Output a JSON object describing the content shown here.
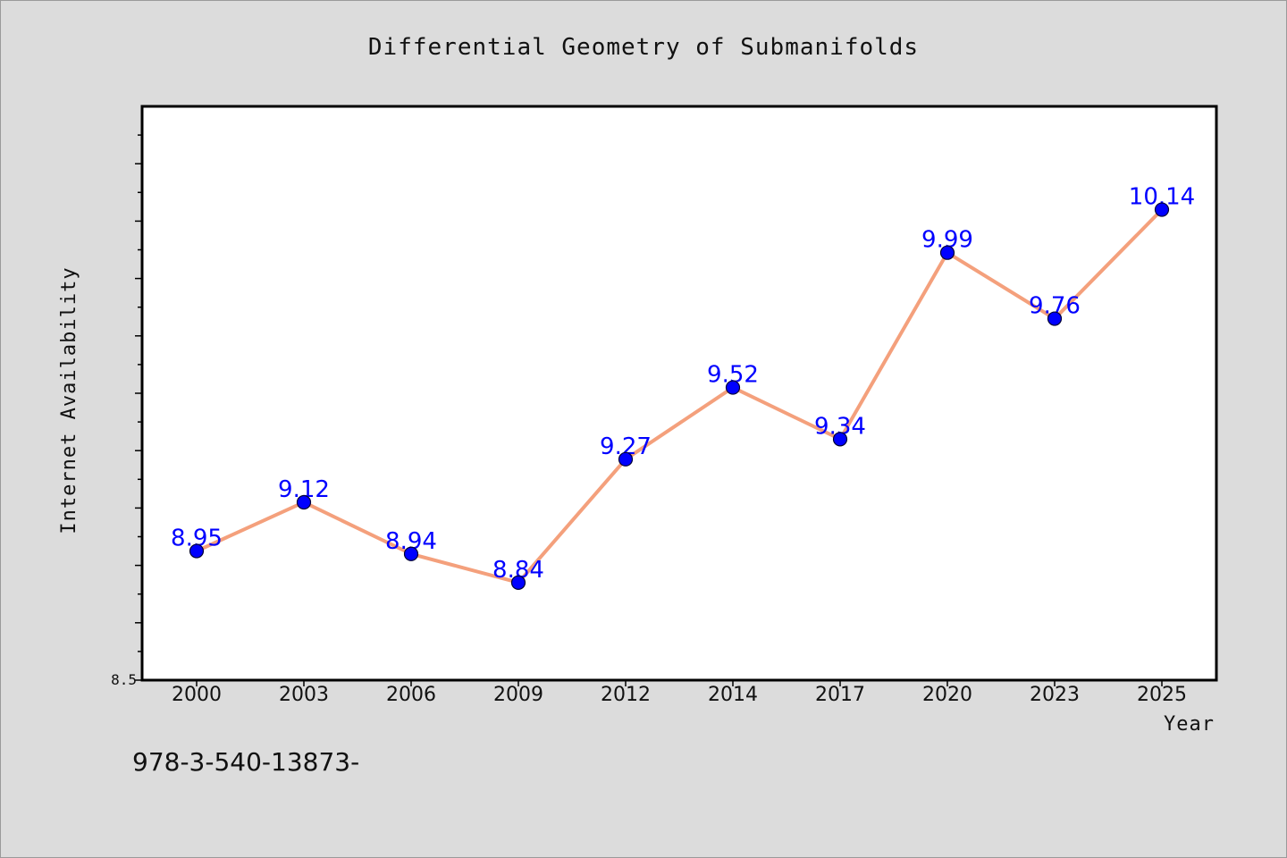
{
  "chart_data": {
    "type": "line",
    "title": "Differential Geometry of Submanifolds",
    "xlabel": "Year",
    "ylabel": "Internet Availability",
    "categories": [
      "2000",
      "2003",
      "2006",
      "2009",
      "2012",
      "2014",
      "2017",
      "2020",
      "2023",
      "2025"
    ],
    "series": [
      {
        "values": [
          8.95,
          9.12,
          8.94,
          8.84,
          9.27,
          9.52,
          9.34,
          9.99,
          9.76,
          10.14
        ],
        "data_labels": [
          "8.95",
          "9.12",
          "8.94",
          "8.84",
          "9.27",
          "9.52",
          "9.34",
          "9.99",
          "9.76",
          "10.14"
        ]
      }
    ],
    "y_tick_labels": [
      "8.5"
    ],
    "ylim": [
      8.5,
      10.5
    ],
    "grid": false,
    "line_color": "#f4a07c",
    "marker_color": "#0000ff",
    "label_color": "#0000ff"
  },
  "footer": {
    "text": "978-3-540-13873-"
  }
}
